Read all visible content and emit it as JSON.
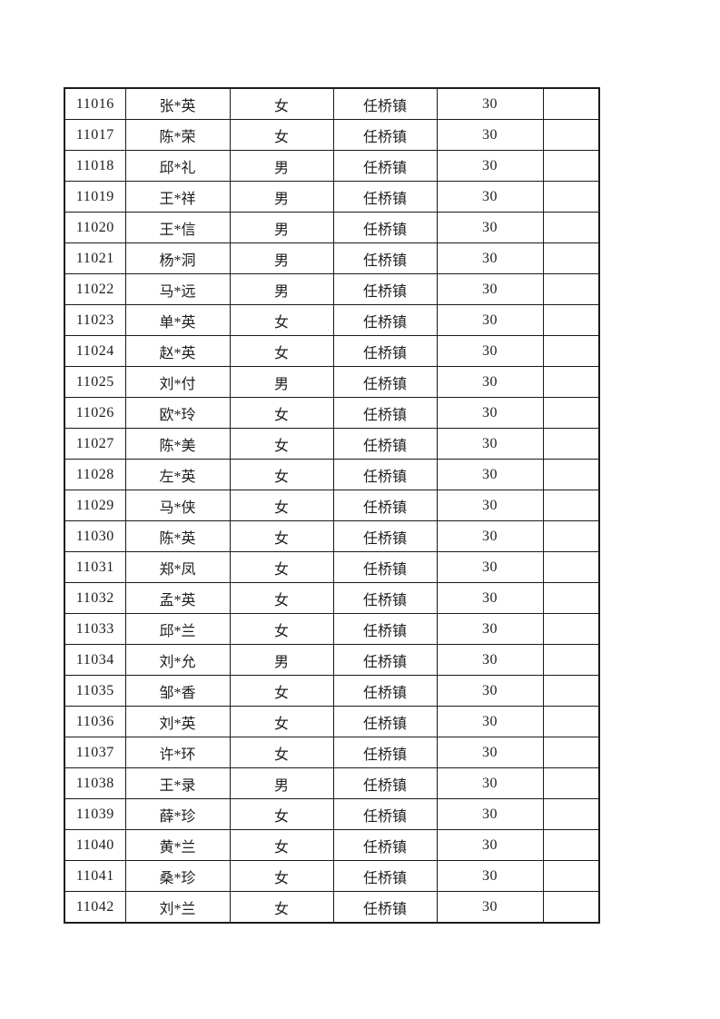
{
  "styles": {
    "page_background": "#ffffff",
    "border_color": "#1a1a1a",
    "text_color": "#1d1d1d"
  },
  "table": {
    "rows": [
      [
        "11016",
        "张*英",
        "女",
        "任桥镇",
        "30",
        ""
      ],
      [
        "11017",
        "陈*荣",
        "女",
        "任桥镇",
        "30",
        ""
      ],
      [
        "11018",
        "邱*礼",
        "男",
        "任桥镇",
        "30",
        ""
      ],
      [
        "11019",
        "王*祥",
        "男",
        "任桥镇",
        "30",
        ""
      ],
      [
        "11020",
        "王*信",
        "男",
        "任桥镇",
        "30",
        ""
      ],
      [
        "11021",
        "杨*洞",
        "男",
        "任桥镇",
        "30",
        ""
      ],
      [
        "11022",
        "马*远",
        "男",
        "任桥镇",
        "30",
        ""
      ],
      [
        "11023",
        "单*英",
        "女",
        "任桥镇",
        "30",
        ""
      ],
      [
        "11024",
        "赵*英",
        "女",
        "任桥镇",
        "30",
        ""
      ],
      [
        "11025",
        "刘*付",
        "男",
        "任桥镇",
        "30",
        ""
      ],
      [
        "11026",
        "欧*玲",
        "女",
        "任桥镇",
        "30",
        ""
      ],
      [
        "11027",
        "陈*美",
        "女",
        "任桥镇",
        "30",
        ""
      ],
      [
        "11028",
        "左*英",
        "女",
        "任桥镇",
        "30",
        ""
      ],
      [
        "11029",
        "马*侠",
        "女",
        "任桥镇",
        "30",
        ""
      ],
      [
        "11030",
        "陈*英",
        "女",
        "任桥镇",
        "30",
        ""
      ],
      [
        "11031",
        "郑*凤",
        "女",
        "任桥镇",
        "30",
        ""
      ],
      [
        "11032",
        "孟*英",
        "女",
        "任桥镇",
        "30",
        ""
      ],
      [
        "11033",
        "邱*兰",
        "女",
        "任桥镇",
        "30",
        ""
      ],
      [
        "11034",
        "刘*允",
        "男",
        "任桥镇",
        "30",
        ""
      ],
      [
        "11035",
        "邹*香",
        "女",
        "任桥镇",
        "30",
        ""
      ],
      [
        "11036",
        "刘*英",
        "女",
        "任桥镇",
        "30",
        ""
      ],
      [
        "11037",
        "许*环",
        "女",
        "任桥镇",
        "30",
        ""
      ],
      [
        "11038",
        "王*录",
        "男",
        "任桥镇",
        "30",
        ""
      ],
      [
        "11039",
        "薛*珍",
        "女",
        "任桥镇",
        "30",
        ""
      ],
      [
        "11040",
        "黄*兰",
        "女",
        "任桥镇",
        "30",
        ""
      ],
      [
        "11041",
        "桑*珍",
        "女",
        "任桥镇",
        "30",
        ""
      ],
      [
        "11042",
        "刘*兰",
        "女",
        "任桥镇",
        "30",
        ""
      ]
    ]
  }
}
